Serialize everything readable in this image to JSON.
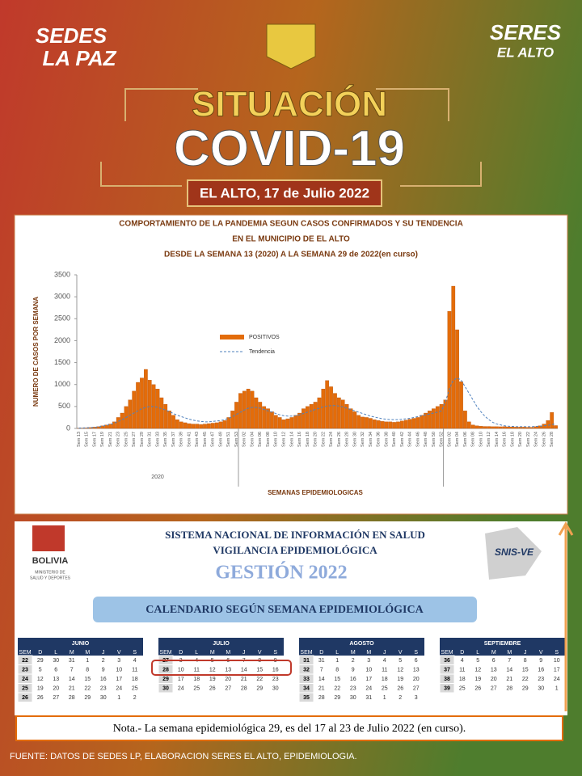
{
  "header": {
    "left_logo": [
      "SEDES",
      "LA PAZ"
    ],
    "right_logo": [
      "SERES",
      "EL ALTO"
    ],
    "kicker": "SITUACIÓN",
    "title": "COVID-19",
    "date": "EL ALTO, 17 de Julio 2022"
  },
  "chart_data": {
    "type": "bar",
    "title": [
      "COMPORTAMIENTO DE LA PANDEMIA SEGUN CASOS CONFIRMADOS Y SU TENDENCIA",
      "EN EL MUNICIPIO DE EL ALTO",
      "DESDE LA SEMANA 13 (2020) A LA SEMANA  29 de 2022(en curso)"
    ],
    "y_label": "NUMERO DE CASOS POR SEMANA",
    "x_label": "SEMANAS EPIDEMIOLOGICAS",
    "year_label": "2020",
    "ylim": [
      0,
      3500
    ],
    "yticks": [
      0,
      500,
      1000,
      1500,
      2000,
      2500,
      3000,
      3500
    ],
    "grid": false,
    "categories": [
      "Sem 13",
      null,
      "Sem 15",
      null,
      "Sem 17",
      null,
      "Sem 19",
      null,
      "Sem 21",
      null,
      "Sem 23",
      null,
      "Sem 25",
      null,
      "Sem 27",
      null,
      "Sem 29",
      null,
      "Sem 31",
      null,
      "Sem 33",
      null,
      "Sem 35",
      null,
      "Sem 37",
      null,
      "Sem 39",
      null,
      "Sem 41",
      null,
      "Sem 43",
      null,
      "Sem 45",
      null,
      "Sem 47",
      null,
      "Sem 49",
      null,
      "Sem 51",
      null,
      "Sem 53",
      null,
      "Sem 02",
      null,
      "Sem 04",
      null,
      "Sem 06",
      null,
      "Sem 08",
      null,
      "Sem 10",
      null,
      "Sem 12",
      null,
      "Sem 14",
      null,
      "Sem 16",
      null,
      "Sem 18",
      null,
      "Sem 20",
      null,
      "Sem 22",
      null,
      "Sem 24",
      null,
      "Sem 26",
      null,
      "Sem 28",
      null,
      "Sem 30",
      null,
      "Sem 32",
      null,
      "Sem 34",
      null,
      "Sem 36",
      null,
      "Sem 38",
      null,
      "Sem 40",
      null,
      "Sem 42",
      null,
      "Sem 44",
      null,
      "Sem 46",
      null,
      "Sem 48",
      null,
      "Sem 50",
      null,
      "Sem 52",
      null,
      "Sem 02",
      null,
      "Sem 04",
      null,
      "Sem 06",
      null,
      "Sem 08",
      null,
      "Sem 10",
      null,
      "Sem 12",
      null,
      "Sem 14",
      null,
      "Sem 16",
      null,
      "Sem 18",
      null,
      "Sem 20",
      null,
      "Sem 22",
      null,
      "Sem 24",
      null,
      "Sem 26",
      null,
      "Sem 28",
      null
    ],
    "series": [
      {
        "name": "POSITIVOS",
        "color": "#e36c0a",
        "values": [
          2,
          5,
          10,
          20,
          30,
          40,
          60,
          80,
          100,
          150,
          250,
          350,
          500,
          650,
          850,
          1050,
          1150,
          1345,
          1100,
          1000,
          900,
          700,
          550,
          400,
          300,
          200,
          150,
          130,
          110,
          100,
          100,
          90,
          100,
          110,
          120,
          130,
          150,
          180,
          250,
          400,
          600,
          800,
          850,
          900,
          850,
          700,
          600,
          500,
          450,
          380,
          300,
          250,
          200,
          220,
          250,
          300,
          350,
          450,
          500,
          550,
          600,
          700,
          900,
          1091,
          950,
          800,
          700,
          650,
          550,
          450,
          380,
          300,
          260,
          250,
          230,
          200,
          180,
          160,
          150,
          150,
          140,
          150,
          170,
          190,
          210,
          230,
          250,
          300,
          350,
          400,
          450,
          500,
          550,
          650,
          2670,
          3242,
          2248,
          1067,
          400,
          150,
          80,
          60,
          50,
          45,
          45,
          40,
          40,
          38,
          40,
          35,
          35,
          30,
          30,
          30,
          25,
          25,
          40,
          60,
          100,
          180,
          364,
          65
        ]
      },
      {
        "name": "Tendencia",
        "color": "#4f81bd",
        "values": [
          10,
          12,
          15,
          20,
          25,
          35,
          50,
          70,
          90,
          120,
          160,
          200,
          250,
          300,
          350,
          400,
          450,
          480,
          500,
          500,
          480,
          450,
          420,
          380,
          340,
          300,
          270,
          240,
          210,
          190,
          170,
          160,
          150,
          150,
          160,
          170,
          180,
          200,
          230,
          270,
          320,
          370,
          420,
          460,
          480,
          480,
          460,
          430,
          400,
          370,
          340,
          310,
          290,
          280,
          280,
          290,
          310,
          340,
          370,
          400,
          430,
          460,
          490,
          510,
          520,
          520,
          510,
          490,
          460,
          430,
          400,
          370,
          340,
          310,
          280,
          260,
          240,
          220,
          210,
          200,
          200,
          200,
          210,
          220,
          230,
          250,
          270,
          290,
          310,
          330,
          350,
          370,
          400,
          600,
          900,
          1100,
          1150,
          1100,
          950,
          800,
          650,
          500,
          380,
          280,
          200,
          140,
          100,
          80,
          60,
          50,
          45,
          40,
          40,
          40,
          40,
          40,
          45,
          50,
          60,
          70,
          90,
          100
        ]
      }
    ]
  },
  "snis": {
    "line1": "SISTEMA NACIONAL DE INFORMACIÓN EN SALUD",
    "line2": "VIGILANCIA EPIDEMIOLÓGICA",
    "gestion": "GESTIÓN  2022",
    "country": "BOLIVIA",
    "ministry": [
      "MINISTERIO DE",
      "SALUD Y DEPORTES"
    ],
    "logo": "SNIS-VE"
  },
  "calendar": {
    "title": "CALENDARIO SEGÚN SEMANA EPIDEMIOLÓGICA",
    "header": [
      "SEM",
      "D",
      "L",
      "M",
      "M",
      "J",
      "V",
      "S"
    ],
    "months": [
      {
        "name": "JUNIO",
        "rows": [
          [
            22,
            29,
            30,
            31,
            1,
            2,
            3,
            4
          ],
          [
            23,
            5,
            6,
            7,
            8,
            9,
            10,
            11
          ],
          [
            24,
            12,
            13,
            14,
            15,
            16,
            17,
            18
          ],
          [
            25,
            19,
            20,
            21,
            22,
            23,
            24,
            25
          ],
          [
            26,
            26,
            27,
            28,
            29,
            30,
            1,
            2
          ]
        ]
      },
      {
        "name": "JULIO",
        "rows": [
          [
            27,
            3,
            4,
            5,
            6,
            7,
            8,
            9
          ],
          [
            28,
            10,
            11,
            12,
            13,
            14,
            15,
            16
          ],
          [
            29,
            17,
            18,
            19,
            20,
            21,
            22,
            23
          ],
          [
            30,
            24,
            25,
            26,
            27,
            28,
            29,
            30
          ]
        ]
      },
      {
        "name": "AGOSTO",
        "rows": [
          [
            31,
            31,
            1,
            2,
            3,
            4,
            5,
            6
          ],
          [
            32,
            7,
            8,
            9,
            10,
            11,
            12,
            13
          ],
          [
            33,
            14,
            15,
            16,
            17,
            18,
            19,
            20
          ],
          [
            34,
            21,
            22,
            23,
            24,
            25,
            26,
            27
          ],
          [
            35,
            28,
            29,
            30,
            31,
            1,
            2,
            3
          ]
        ]
      },
      {
        "name": "SEPTIEMBRE",
        "rows": [
          [
            36,
            4,
            5,
            6,
            7,
            8,
            9,
            10
          ],
          [
            37,
            11,
            12,
            13,
            14,
            15,
            16,
            17
          ],
          [
            38,
            18,
            19,
            20,
            21,
            22,
            23,
            24
          ],
          [
            39,
            25,
            26,
            27,
            28,
            29,
            30,
            1
          ]
        ]
      }
    ]
  },
  "note": "Nota.- La semana epidemiológica  29, es del 17 al 23 de Julio 2022 (en curso).",
  "source": "FUENTE: DATOS DE SEDES LP, ELABORACION SERES EL ALTO, EPIDEMIOLOGIA."
}
